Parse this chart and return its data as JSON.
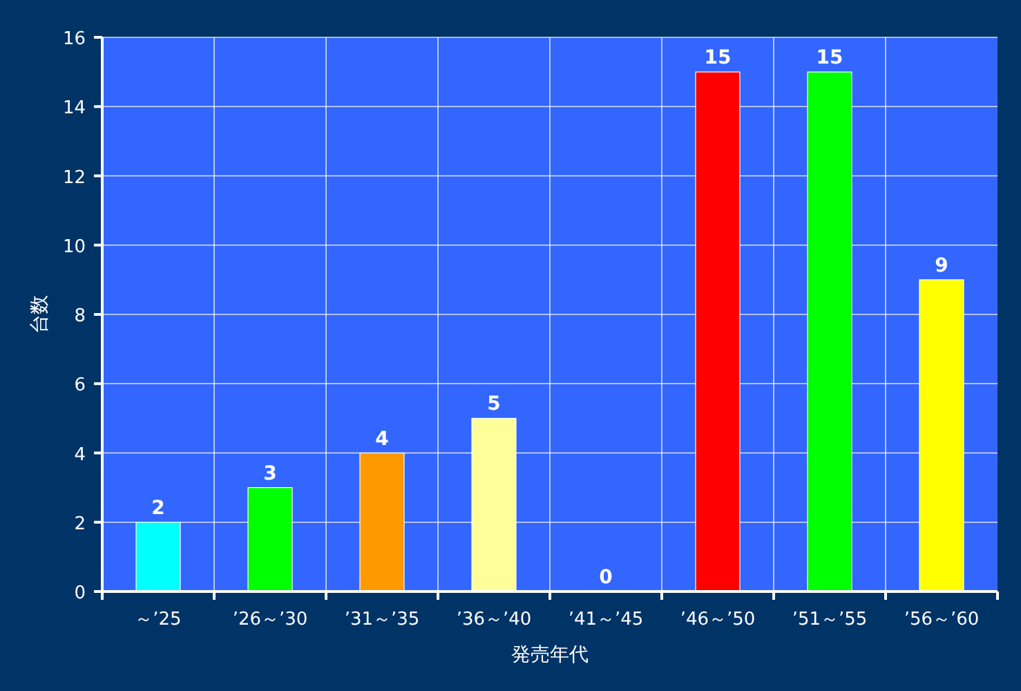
{
  "chart_data": {
    "type": "bar",
    "xlabel": "発売年代",
    "ylabel": "台数",
    "categories": [
      "～’25",
      "’26～’30",
      "’31～’35",
      "’36～’40",
      "’41～’45",
      "’46～’50",
      "’51～’55",
      "’56～’60"
    ],
    "values": [
      2,
      3,
      4,
      5,
      0,
      15,
      15,
      9
    ],
    "colors": [
      "#00ffff",
      "#00ff00",
      "#ff9900",
      "#ffff99",
      null,
      "#ff0000",
      "#00ff00",
      "#ffff00"
    ],
    "ylim": [
      0,
      16
    ],
    "yticks": [
      0,
      2,
      4,
      6,
      8,
      10,
      12,
      14,
      16
    ],
    "grid": true,
    "data_labels": true
  }
}
